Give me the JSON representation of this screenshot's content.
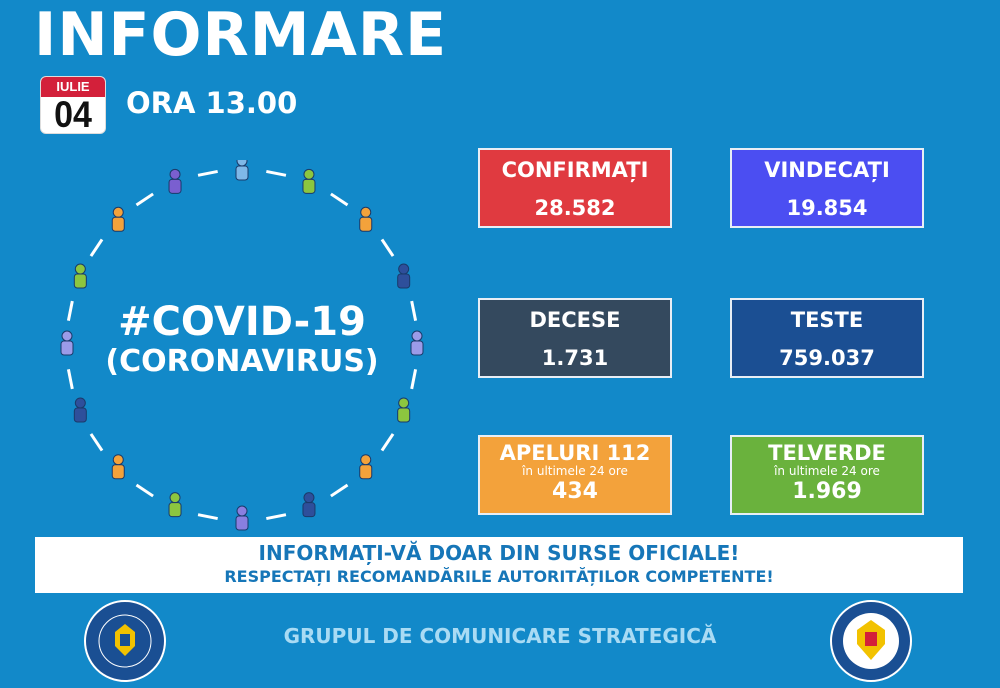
{
  "header": {
    "title": "INFORMARE",
    "month": "IULIE",
    "day": "04",
    "time": "ORA 13.00"
  },
  "center": {
    "hashtag": "#COVID-19",
    "subtitle": "(CORONAVIRUS)"
  },
  "stats": [
    {
      "label": "CONFIRMAȚI",
      "value": "28.582",
      "color": "#e03a40"
    },
    {
      "label": "VINDECAȚI",
      "value": "19.854",
      "color": "#4b4ef2"
    },
    {
      "label": "DECESE",
      "value": "1.731",
      "color": "#34495e"
    },
    {
      "label": "TESTE",
      "value": "759.037",
      "color": "#1b4f93"
    },
    {
      "label": "APELURI 112",
      "sub": "în ultimele 24 ore",
      "value": "434",
      "color": "#f3a23b"
    },
    {
      "label": "TELVERDE",
      "sub": "în ultimele 24 ore",
      "value": "1.969",
      "color": "#6ab23d"
    }
  ],
  "banner": {
    "line1": "INFORMAȚI-VĂ DOAR DIN SURSE OFICIALE!",
    "line2": "RESPECTAȚI RECOMANDĂRILE AUTORITĂȚILOR COMPETENTE!"
  },
  "footer": {
    "text": "GRUPUL DE COMUNICARE STRATEGICĂ"
  },
  "logos": {
    "left": "GUVERNUL ROMÂNIEI",
    "right": "DEPARTAMENTUL PENTRU SITUAȚII DE URGENȚĂ M.A.I."
  }
}
